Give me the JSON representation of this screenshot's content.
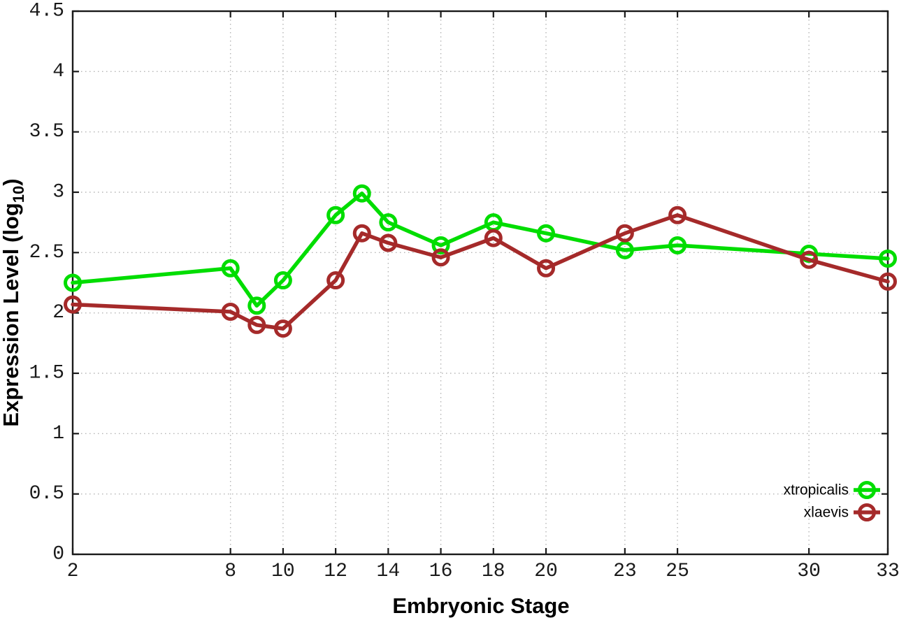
{
  "chart_data": {
    "type": "line",
    "title": "",
    "xlabel": "Embryonic Stage",
    "ylabel": {
      "base": "Expression Level (log",
      "sub": "10",
      "close": ")"
    },
    "xlim": [
      2,
      33
    ],
    "ylim": [
      0,
      4.5
    ],
    "xticks": [
      2,
      8,
      10,
      12,
      14,
      16,
      18,
      20,
      23,
      25,
      30,
      33
    ],
    "yticks": [
      0,
      0.5,
      1,
      1.5,
      2,
      2.5,
      3,
      3.5,
      4,
      4.5
    ],
    "grid": true,
    "legend_position": "bottom-right",
    "x": [
      2,
      8,
      9,
      10,
      12,
      13,
      14,
      16,
      18,
      20,
      23,
      25,
      30,
      33
    ],
    "series": [
      {
        "name": "xtropicalis",
        "color": "#00dd00",
        "values": [
          2.25,
          2.37,
          2.06,
          2.27,
          2.81,
          2.99,
          2.75,
          2.56,
          2.75,
          2.66,
          2.52,
          2.56,
          2.49,
          2.45
        ]
      },
      {
        "name": "xlaevis",
        "color": "#a52a2a",
        "values": [
          2.07,
          2.01,
          1.9,
          1.87,
          2.27,
          2.66,
          2.58,
          2.46,
          2.62,
          2.37,
          2.66,
          2.81,
          2.44,
          2.26
        ]
      }
    ],
    "colors": {
      "border": "#1a1a1a",
      "grid": "#b5b5b5",
      "tick": "#1a1a1a",
      "background": "#ffffff"
    }
  }
}
